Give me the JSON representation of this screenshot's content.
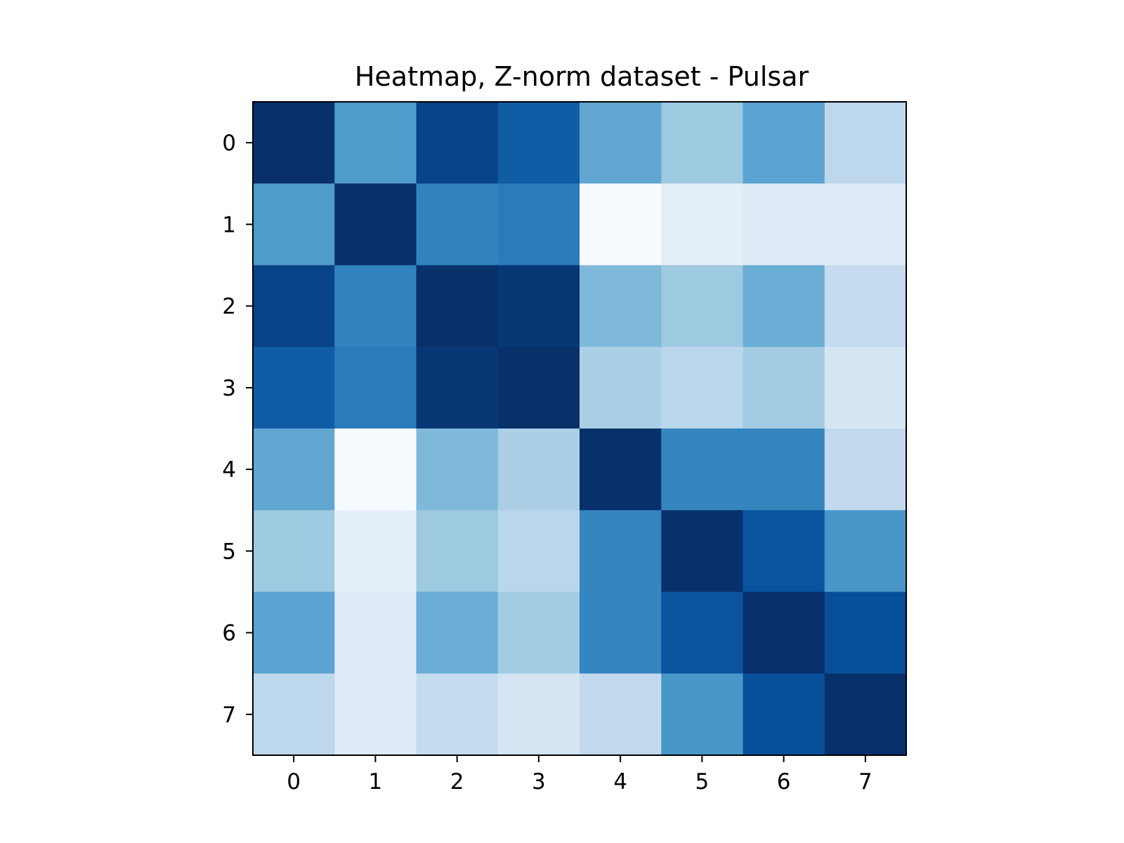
{
  "chart_data": {
    "type": "heatmap",
    "title": "Heatmap, Z-norm dataset - Pulsar",
    "xlabel": "",
    "ylabel": "",
    "x_ticks": [
      "0",
      "1",
      "2",
      "3",
      "4",
      "5",
      "6",
      "7"
    ],
    "y_ticks": [
      "0",
      "1",
      "2",
      "3",
      "4",
      "5",
      "6",
      "7"
    ],
    "colormap": "Blues",
    "value_range": [
      -0.11,
      1.0
    ],
    "values": [
      [
        1.0,
        0.54,
        0.92,
        0.81,
        0.48,
        0.31,
        0.5,
        0.2
      ],
      [
        0.54,
        1.0,
        0.65,
        0.68,
        -0.11,
        -0.01,
        0.03,
        0.03
      ],
      [
        0.92,
        0.65,
        1.0,
        0.97,
        0.39,
        0.31,
        0.45,
        0.17
      ],
      [
        0.81,
        0.68,
        0.97,
        1.0,
        0.26,
        0.21,
        0.29,
        0.08
      ],
      [
        0.48,
        -0.11,
        0.39,
        0.26,
        1.0,
        0.64,
        0.64,
        0.18
      ],
      [
        0.31,
        -0.01,
        0.31,
        0.21,
        0.64,
        1.0,
        0.85,
        0.56
      ],
      [
        0.5,
        0.03,
        0.45,
        0.29,
        0.64,
        0.85,
        1.0,
        0.87
      ],
      [
        0.2,
        0.03,
        0.17,
        0.08,
        0.18,
        0.56,
        0.87,
        1.0
      ]
    ]
  }
}
